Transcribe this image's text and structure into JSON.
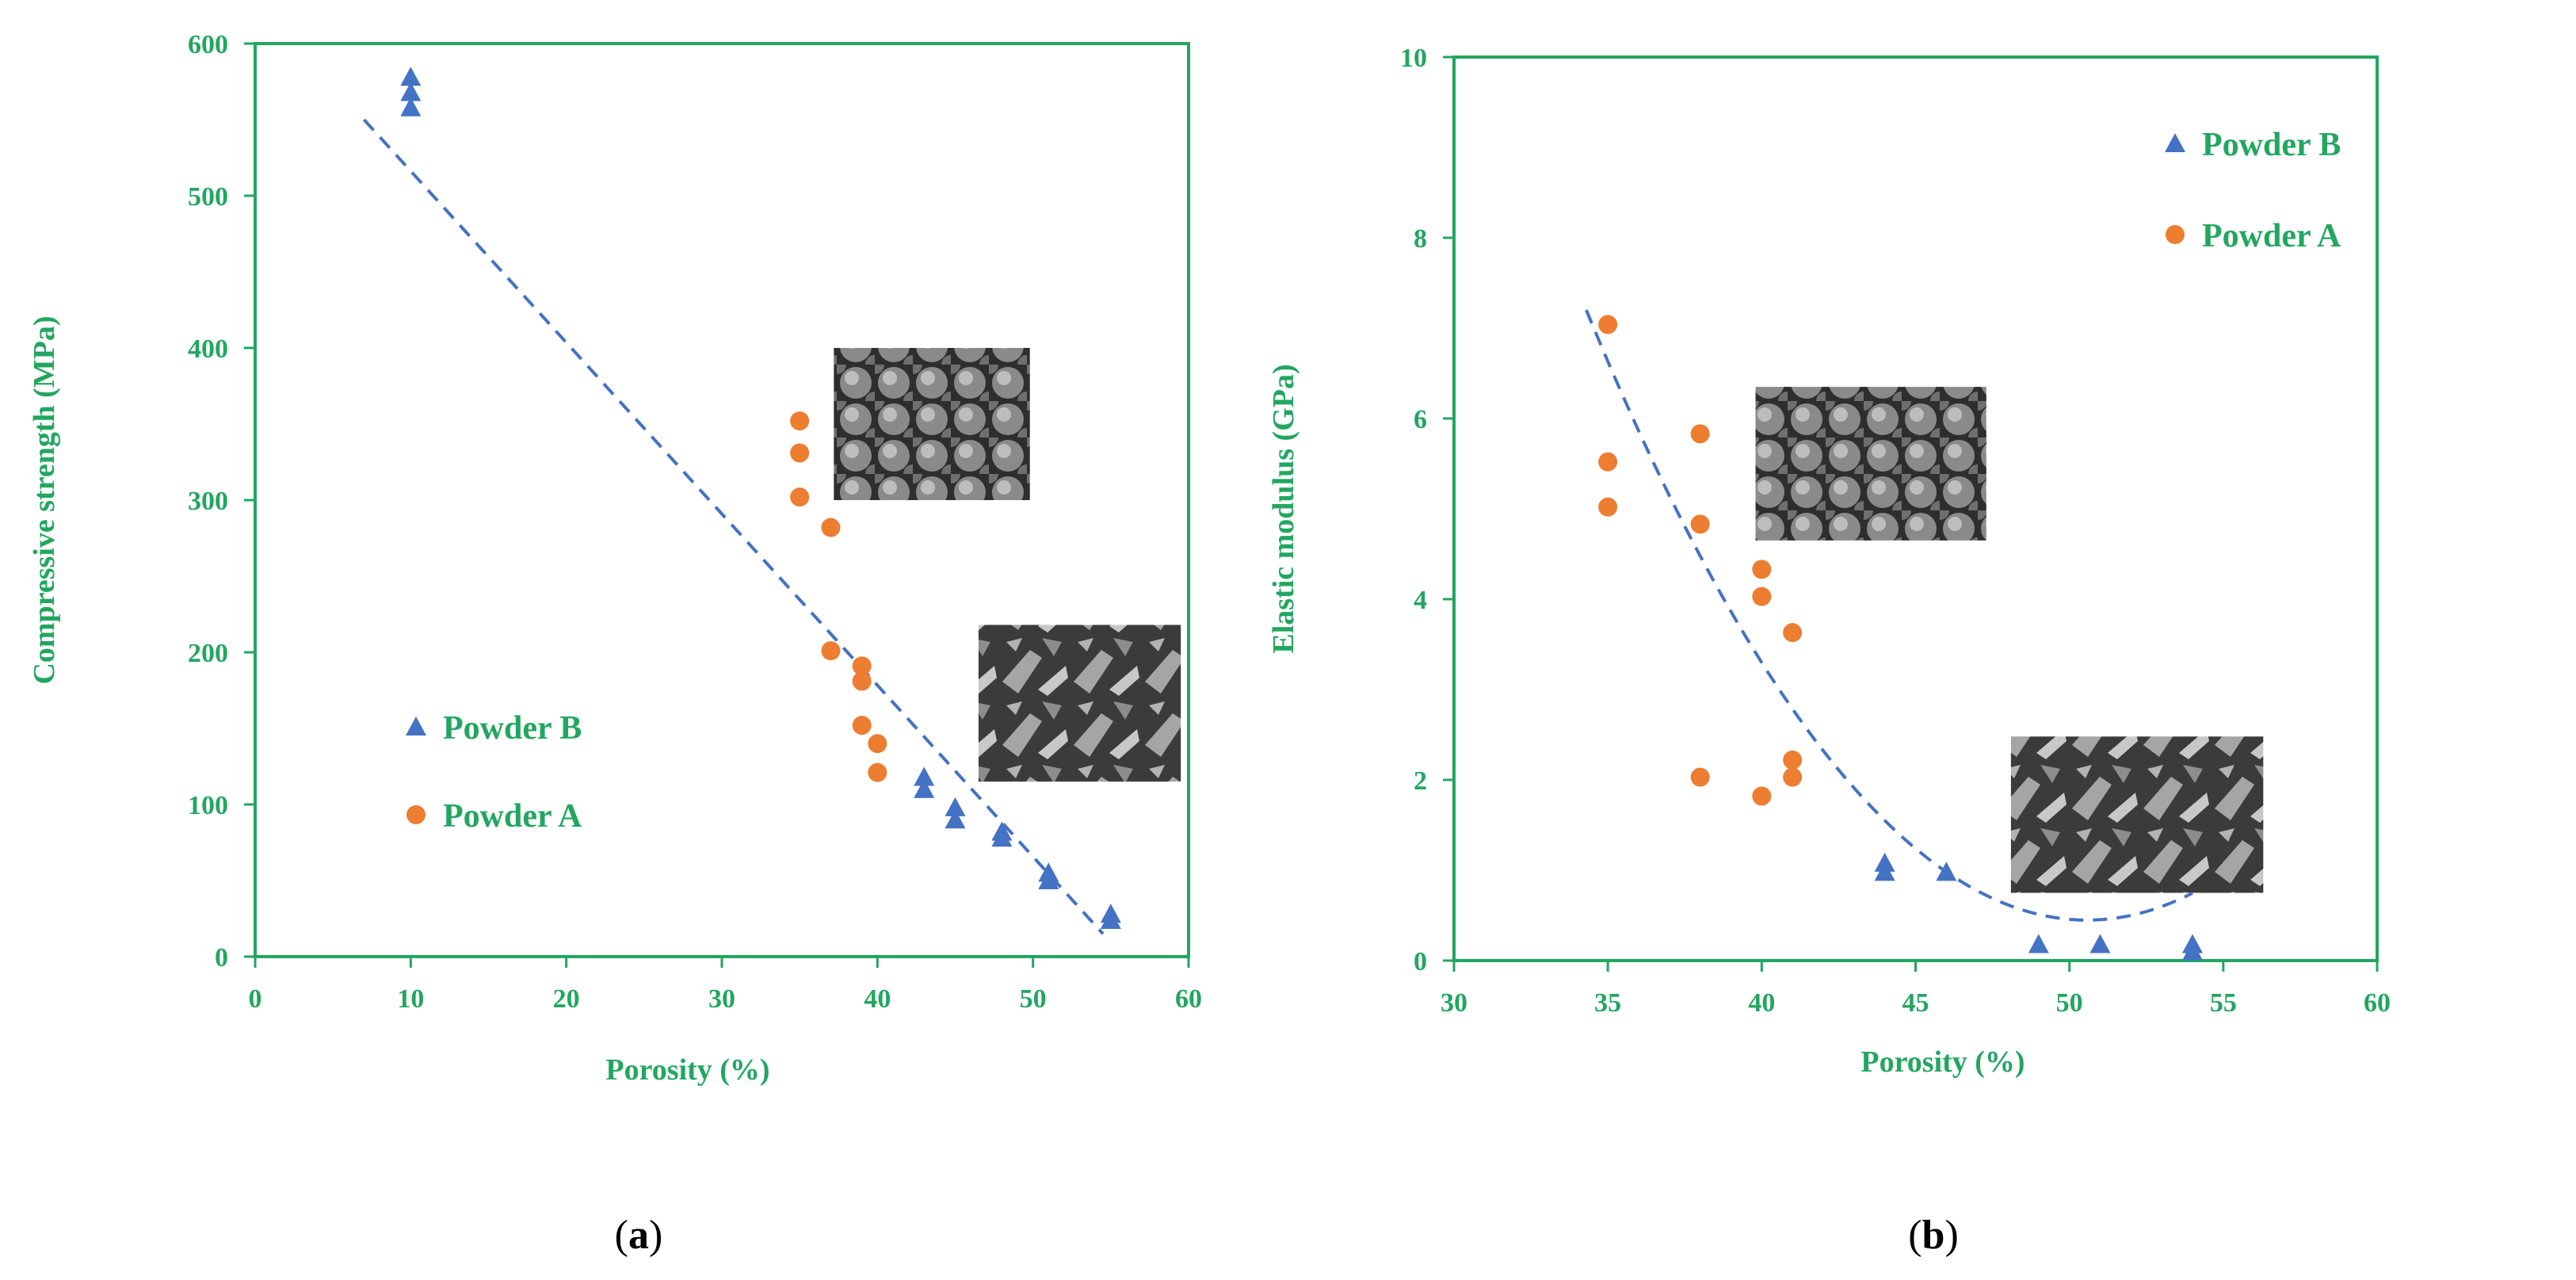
{
  "colors": {
    "axis": "#22a660",
    "powder_b": "#4472c4",
    "powder_a": "#ed7d31",
    "trend": "#4472c4",
    "caption": "#000000"
  },
  "chart_data": [
    {
      "type": "scatter",
      "caption": "(a)",
      "caption_letter": "a",
      "xlabel": "Porosity (%)",
      "ylabel": "Compressive strength (MPa)",
      "xlim": [
        0,
        60
      ],
      "ylim": [
        0,
        600
      ],
      "xticks": [
        0,
        10,
        20,
        30,
        40,
        50,
        60
      ],
      "yticks": [
        0,
        100,
        200,
        300,
        400,
        500,
        600
      ],
      "legend_position": "left-bottom",
      "series": [
        {
          "name": "Powder B",
          "marker": "triangle",
          "color_key": "powder_b",
          "points": [
            [
              10,
              578
            ],
            [
              10,
              568
            ],
            [
              10,
              558
            ],
            [
              43,
              118
            ],
            [
              43,
              110
            ],
            [
              45,
              98
            ],
            [
              45,
              90
            ],
            [
              48,
              82
            ],
            [
              48,
              78
            ],
            [
              51,
              55
            ],
            [
              51,
              50
            ],
            [
              55,
              28
            ],
            [
              55,
              24
            ]
          ]
        },
        {
          "name": "Powder A",
          "marker": "circle",
          "color_key": "powder_a",
          "points": [
            [
              35,
              352
            ],
            [
              35,
              331
            ],
            [
              35,
              302
            ],
            [
              37,
              282
            ],
            [
              37,
              201
            ],
            [
              39,
              191
            ],
            [
              39,
              181
            ],
            [
              39,
              152
            ],
            [
              40,
              140
            ],
            [
              40,
              121
            ]
          ]
        }
      ],
      "trendline": {
        "type": "linear",
        "points": [
          [
            7,
            550
          ],
          [
            54.5,
            15
          ]
        ]
      },
      "insets": [
        {
          "name": "spherical-particles-sem",
          "x": [
            37.2,
            49.8
          ],
          "y": [
            400,
            300
          ]
        },
        {
          "name": "irregular-particles-sem",
          "x": [
            46.5,
            59.5
          ],
          "y": [
            218,
            115
          ]
        }
      ]
    },
    {
      "type": "scatter",
      "caption": "(b)",
      "caption_letter": "b",
      "xlabel": "Porosity (%)",
      "ylabel": "Elastic modulus (GPa)",
      "xlim": [
        30,
        60
      ],
      "ylim": [
        0,
        10
      ],
      "xticks": [
        30,
        35,
        40,
        45,
        50,
        55,
        60
      ],
      "yticks": [
        0,
        2,
        4,
        6,
        8,
        10
      ],
      "legend_position": "top-right",
      "series": [
        {
          "name": "Powder B",
          "marker": "triangle",
          "color_key": "powder_b",
          "points": [
            [
              44,
              1.08
            ],
            [
              44,
              0.98
            ],
            [
              46,
              0.98
            ],
            [
              49,
              0.18
            ],
            [
              51,
              0.18
            ],
            [
              54,
              0.18
            ],
            [
              54,
              0.1
            ]
          ]
        },
        {
          "name": "Powder A",
          "marker": "circle",
          "color_key": "powder_a",
          "points": [
            [
              35,
              7.04
            ],
            [
              35,
              5.52
            ],
            [
              35,
              5.02
            ],
            [
              38,
              5.83
            ],
            [
              38,
              4.83
            ],
            [
              38,
              2.03
            ],
            [
              40,
              4.33
            ],
            [
              40,
              4.03
            ],
            [
              40,
              1.82
            ],
            [
              41,
              3.63
            ],
            [
              41,
              2.22
            ],
            [
              41,
              2.03
            ]
          ]
        }
      ],
      "trendline": {
        "type": "polynomial",
        "degree": 2,
        "anchor_points": [
          [
            34.3,
            7.2
          ],
          [
            44,
            1.55
          ],
          [
            52,
            0.5
          ]
        ],
        "x_range": [
          34.3,
          54
        ]
      },
      "insets": [
        {
          "name": "spherical-particles-sem",
          "x": [
            39.8,
            47.3
          ],
          "y": [
            6.35,
            4.65
          ]
        },
        {
          "name": "irregular-particles-sem",
          "x": [
            48.1,
            56.3
          ],
          "y": [
            2.48,
            0.75
          ]
        }
      ]
    }
  ]
}
